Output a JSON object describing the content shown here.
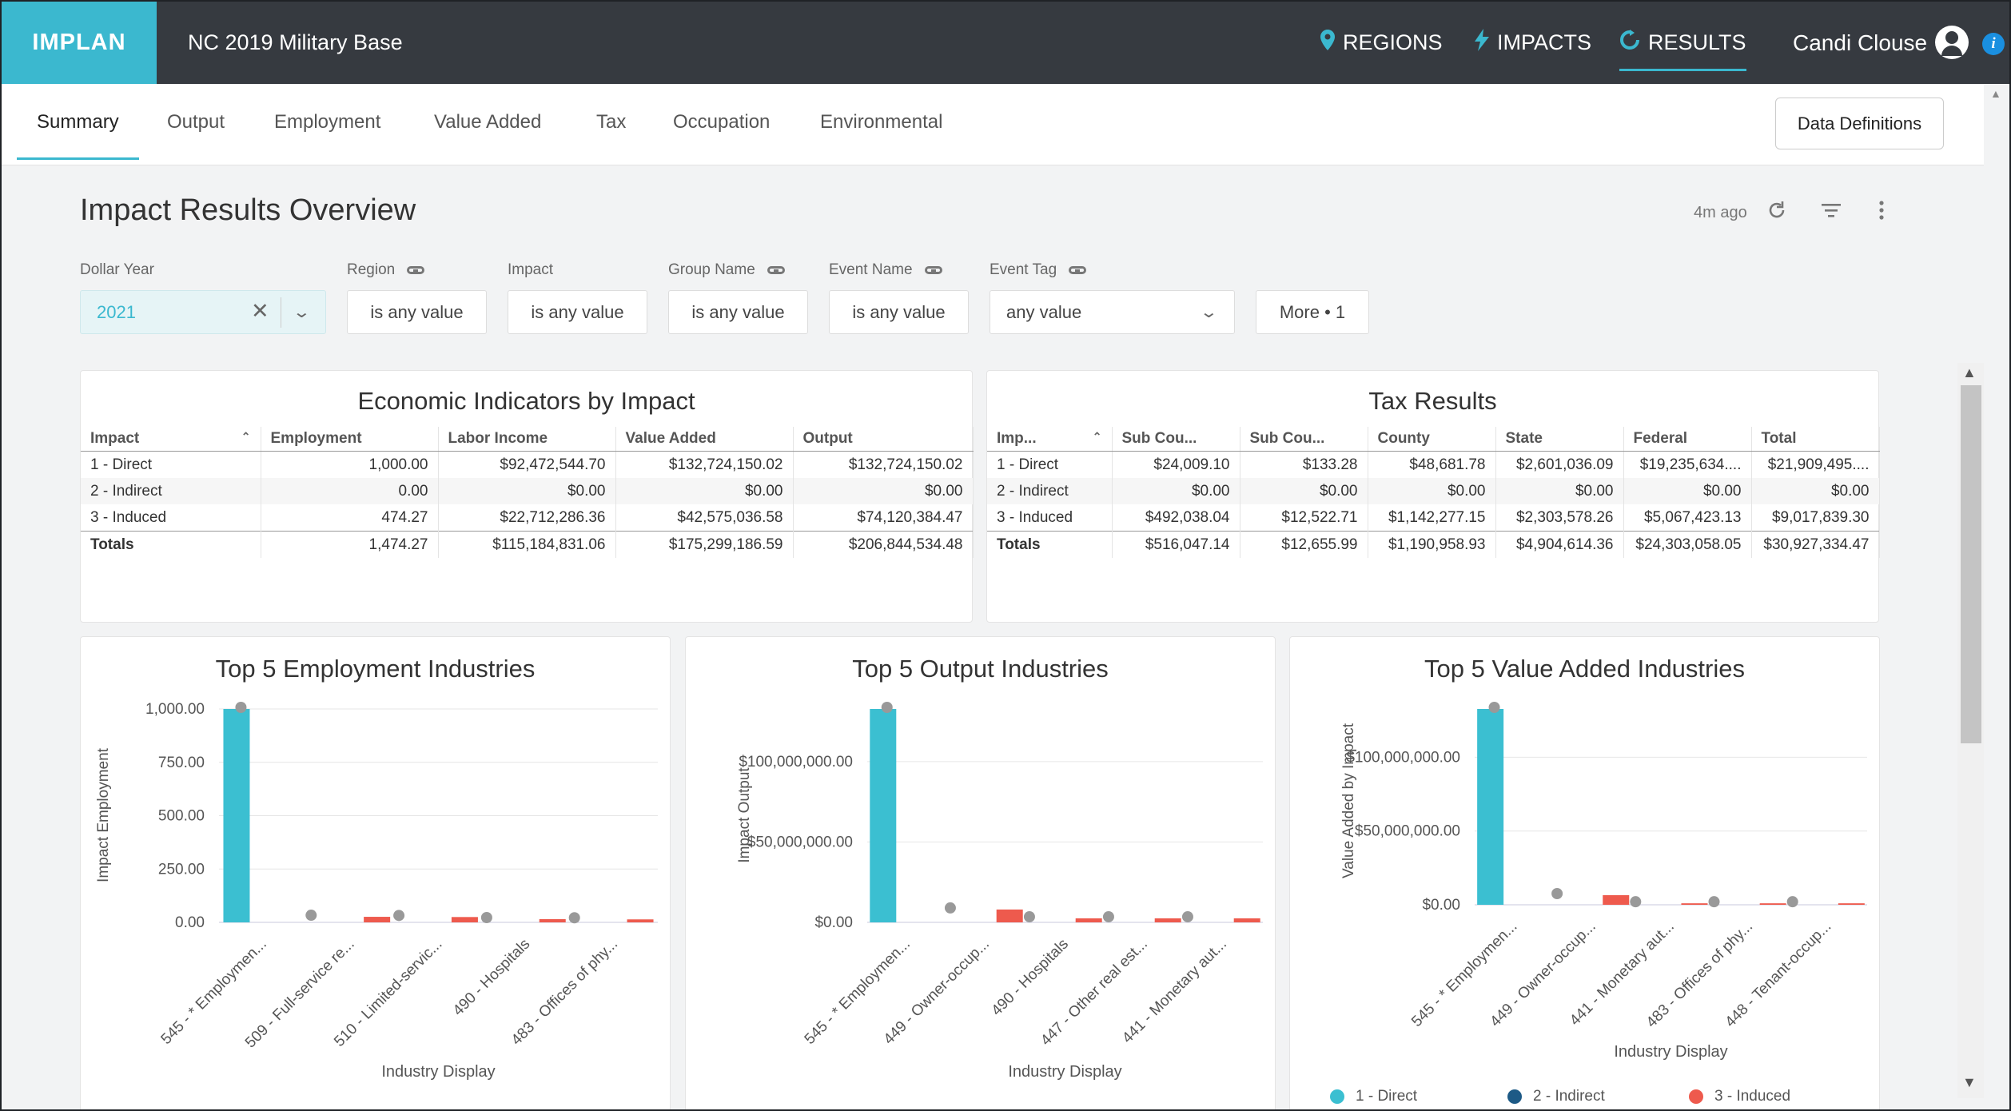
{
  "app": {
    "logo": "IMPLAN",
    "title": "NC 2019 Military Base",
    "nav": [
      {
        "label": "REGIONS",
        "icon": "map-pin-icon"
      },
      {
        "label": "IMPACTS",
        "icon": "lightning-icon"
      },
      {
        "label": "RESULTS",
        "icon": "refresh-icon",
        "active": true
      }
    ],
    "user": "Candi Clouse",
    "info": "i"
  },
  "tabs": [
    "Summary",
    "Output",
    "Employment",
    "Value Added",
    "Tax",
    "Occupation",
    "Environmental"
  ],
  "active_tab": "Summary",
  "data_definitions_label": "Data Definitions",
  "dashboard": {
    "title": "Impact Results Overview",
    "updated": "4m ago"
  },
  "filters": {
    "dollar_year": {
      "label": "Dollar Year",
      "value": "2021"
    },
    "region": {
      "label": "Region",
      "value": "is any value"
    },
    "impact": {
      "label": "Impact",
      "value": "is any value"
    },
    "group_name": {
      "label": "Group Name",
      "value": "is any value"
    },
    "event_name": {
      "label": "Event Name",
      "value": "is any value"
    },
    "event_tag": {
      "label": "Event Tag",
      "value": "any value"
    },
    "more": "More • 1"
  },
  "econ_table": {
    "title": "Economic Indicators by Impact",
    "columns": [
      "Impact",
      "Employment",
      "Labor Income",
      "Value Added",
      "Output"
    ],
    "rows": [
      [
        "1 - Direct",
        "1,000.00",
        "$92,472,544.70",
        "$132,724,150.02",
        "$132,724,150.02"
      ],
      [
        "2 - Indirect",
        "0.00",
        "$0.00",
        "$0.00",
        "$0.00"
      ],
      [
        "3 - Induced",
        "474.27",
        "$22,712,286.36",
        "$42,575,036.58",
        "$74,120,384.47"
      ]
    ],
    "totals": [
      "Totals",
      "1,474.27",
      "$115,184,831.06",
      "$175,299,186.59",
      "$206,844,534.48"
    ]
  },
  "tax_table": {
    "title": "Tax Results",
    "columns": [
      "Imp...",
      "Sub Cou...",
      "Sub Cou...",
      "County",
      "State",
      "Federal",
      "Total"
    ],
    "rows": [
      [
        "1 - Direct",
        "$24,009.10",
        "$133.28",
        "$48,681.78",
        "$2,601,036.09",
        "$19,235,634....",
        "$21,909,495...."
      ],
      [
        "2 - Indirect",
        "$0.00",
        "$0.00",
        "$0.00",
        "$0.00",
        "$0.00",
        "$0.00"
      ],
      [
        "3 - Induced",
        "$492,038.04",
        "$12,522.71",
        "$1,142,277.15",
        "$2,303,578.26",
        "$5,067,423.13",
        "$9,017,839.30"
      ]
    ],
    "totals": [
      "Totals",
      "$516,047.14",
      "$12,655.99",
      "$1,190,958.93",
      "$4,904,614.36",
      "$24,303,058.05",
      "$30,927,334.47"
    ]
  },
  "chart_data": [
    {
      "type": "bar",
      "title": "Top 5 Employment Industries",
      "xlabel": "Industry Display",
      "ylabel": "Impact Employment",
      "categories": [
        "545 - * Employmen...",
        "509 - Full-service re...",
        "510 - Limited-servic...",
        "490 - Hospitals",
        "483 - Offices of phy..."
      ],
      "series": [
        {
          "name": "1 - Direct",
          "color": "#3bbfd1",
          "values": [
            1000,
            0,
            0,
            0,
            0
          ]
        },
        {
          "name": "2 - Indirect",
          "color": "#1d5a86",
          "values": [
            0,
            0,
            0,
            0,
            0
          ]
        },
        {
          "name": "3 - Induced",
          "color": "#ee5a4d",
          "values": [
            0,
            26,
            25,
            15,
            14
          ]
        }
      ],
      "totals": [
        1000,
        26,
        25,
        15,
        14
      ],
      "yticks": [
        "0.00",
        "250.00",
        "500.00",
        "750.00",
        "1,000.00"
      ],
      "ylim": [
        0,
        1000
      ]
    },
    {
      "type": "bar",
      "title": "Top 5 Output Industries",
      "xlabel": "Industry Display",
      "ylabel": "Impact Output",
      "categories": [
        "545 - * Employmen...",
        "449 - Owner-occup...",
        "490 - Hospitals",
        "447 - Other real est...",
        "441 - Monetary aut..."
      ],
      "series": [
        {
          "name": "1 - Direct",
          "color": "#3bbfd1",
          "values": [
            132724150,
            0,
            0,
            0,
            0
          ]
        },
        {
          "name": "2 - Indirect",
          "color": "#1d5a86",
          "values": [
            0,
            0,
            0,
            0,
            0
          ]
        },
        {
          "name": "3 - Induced",
          "color": "#ee5a4d",
          "values": [
            0,
            8000000,
            2500000,
            2500000,
            2500000
          ]
        }
      ],
      "totals": [
        132724150,
        8000000,
        2500000,
        2500000,
        2500000
      ],
      "yticks": [
        "$0.00",
        "$50,000,000.00",
        "$100,000,000.00"
      ],
      "ylim": [
        0,
        132724150
      ]
    },
    {
      "type": "bar",
      "title": "Top 5 Value Added Industries",
      "xlabel": "Industry Display",
      "ylabel": "Value Added by Impact",
      "categories": [
        "545 - * Employmen...",
        "449 - Owner-occup...",
        "441 - Monetary aut...",
        "483 - Offices of phy...",
        "448 - Tenant-occup..."
      ],
      "series": [
        {
          "name": "1 - Direct",
          "color": "#3bbfd1",
          "values": [
            132724150,
            0,
            0,
            0,
            0
          ]
        },
        {
          "name": "2 - Indirect",
          "color": "#1d5a86",
          "values": [
            0,
            0,
            0,
            0,
            0
          ]
        },
        {
          "name": "3 - Induced",
          "color": "#ee5a4d",
          "values": [
            0,
            6500000,
            1000000,
            1000000,
            1000000
          ]
        }
      ],
      "totals": [
        132724150,
        6500000,
        1000000,
        1000000,
        1000000
      ],
      "yticks": [
        "$0.00",
        "$50,000,000.00",
        "$100,000,000.00"
      ],
      "ylim": [
        0,
        132724150
      ]
    }
  ],
  "legend": [
    {
      "label": "1 - Direct",
      "color": "#3bbfd1"
    },
    {
      "label": "2 - Indirect",
      "color": "#1d5a86"
    },
    {
      "label": "3 - Induced",
      "color": "#ee5a4d"
    }
  ]
}
